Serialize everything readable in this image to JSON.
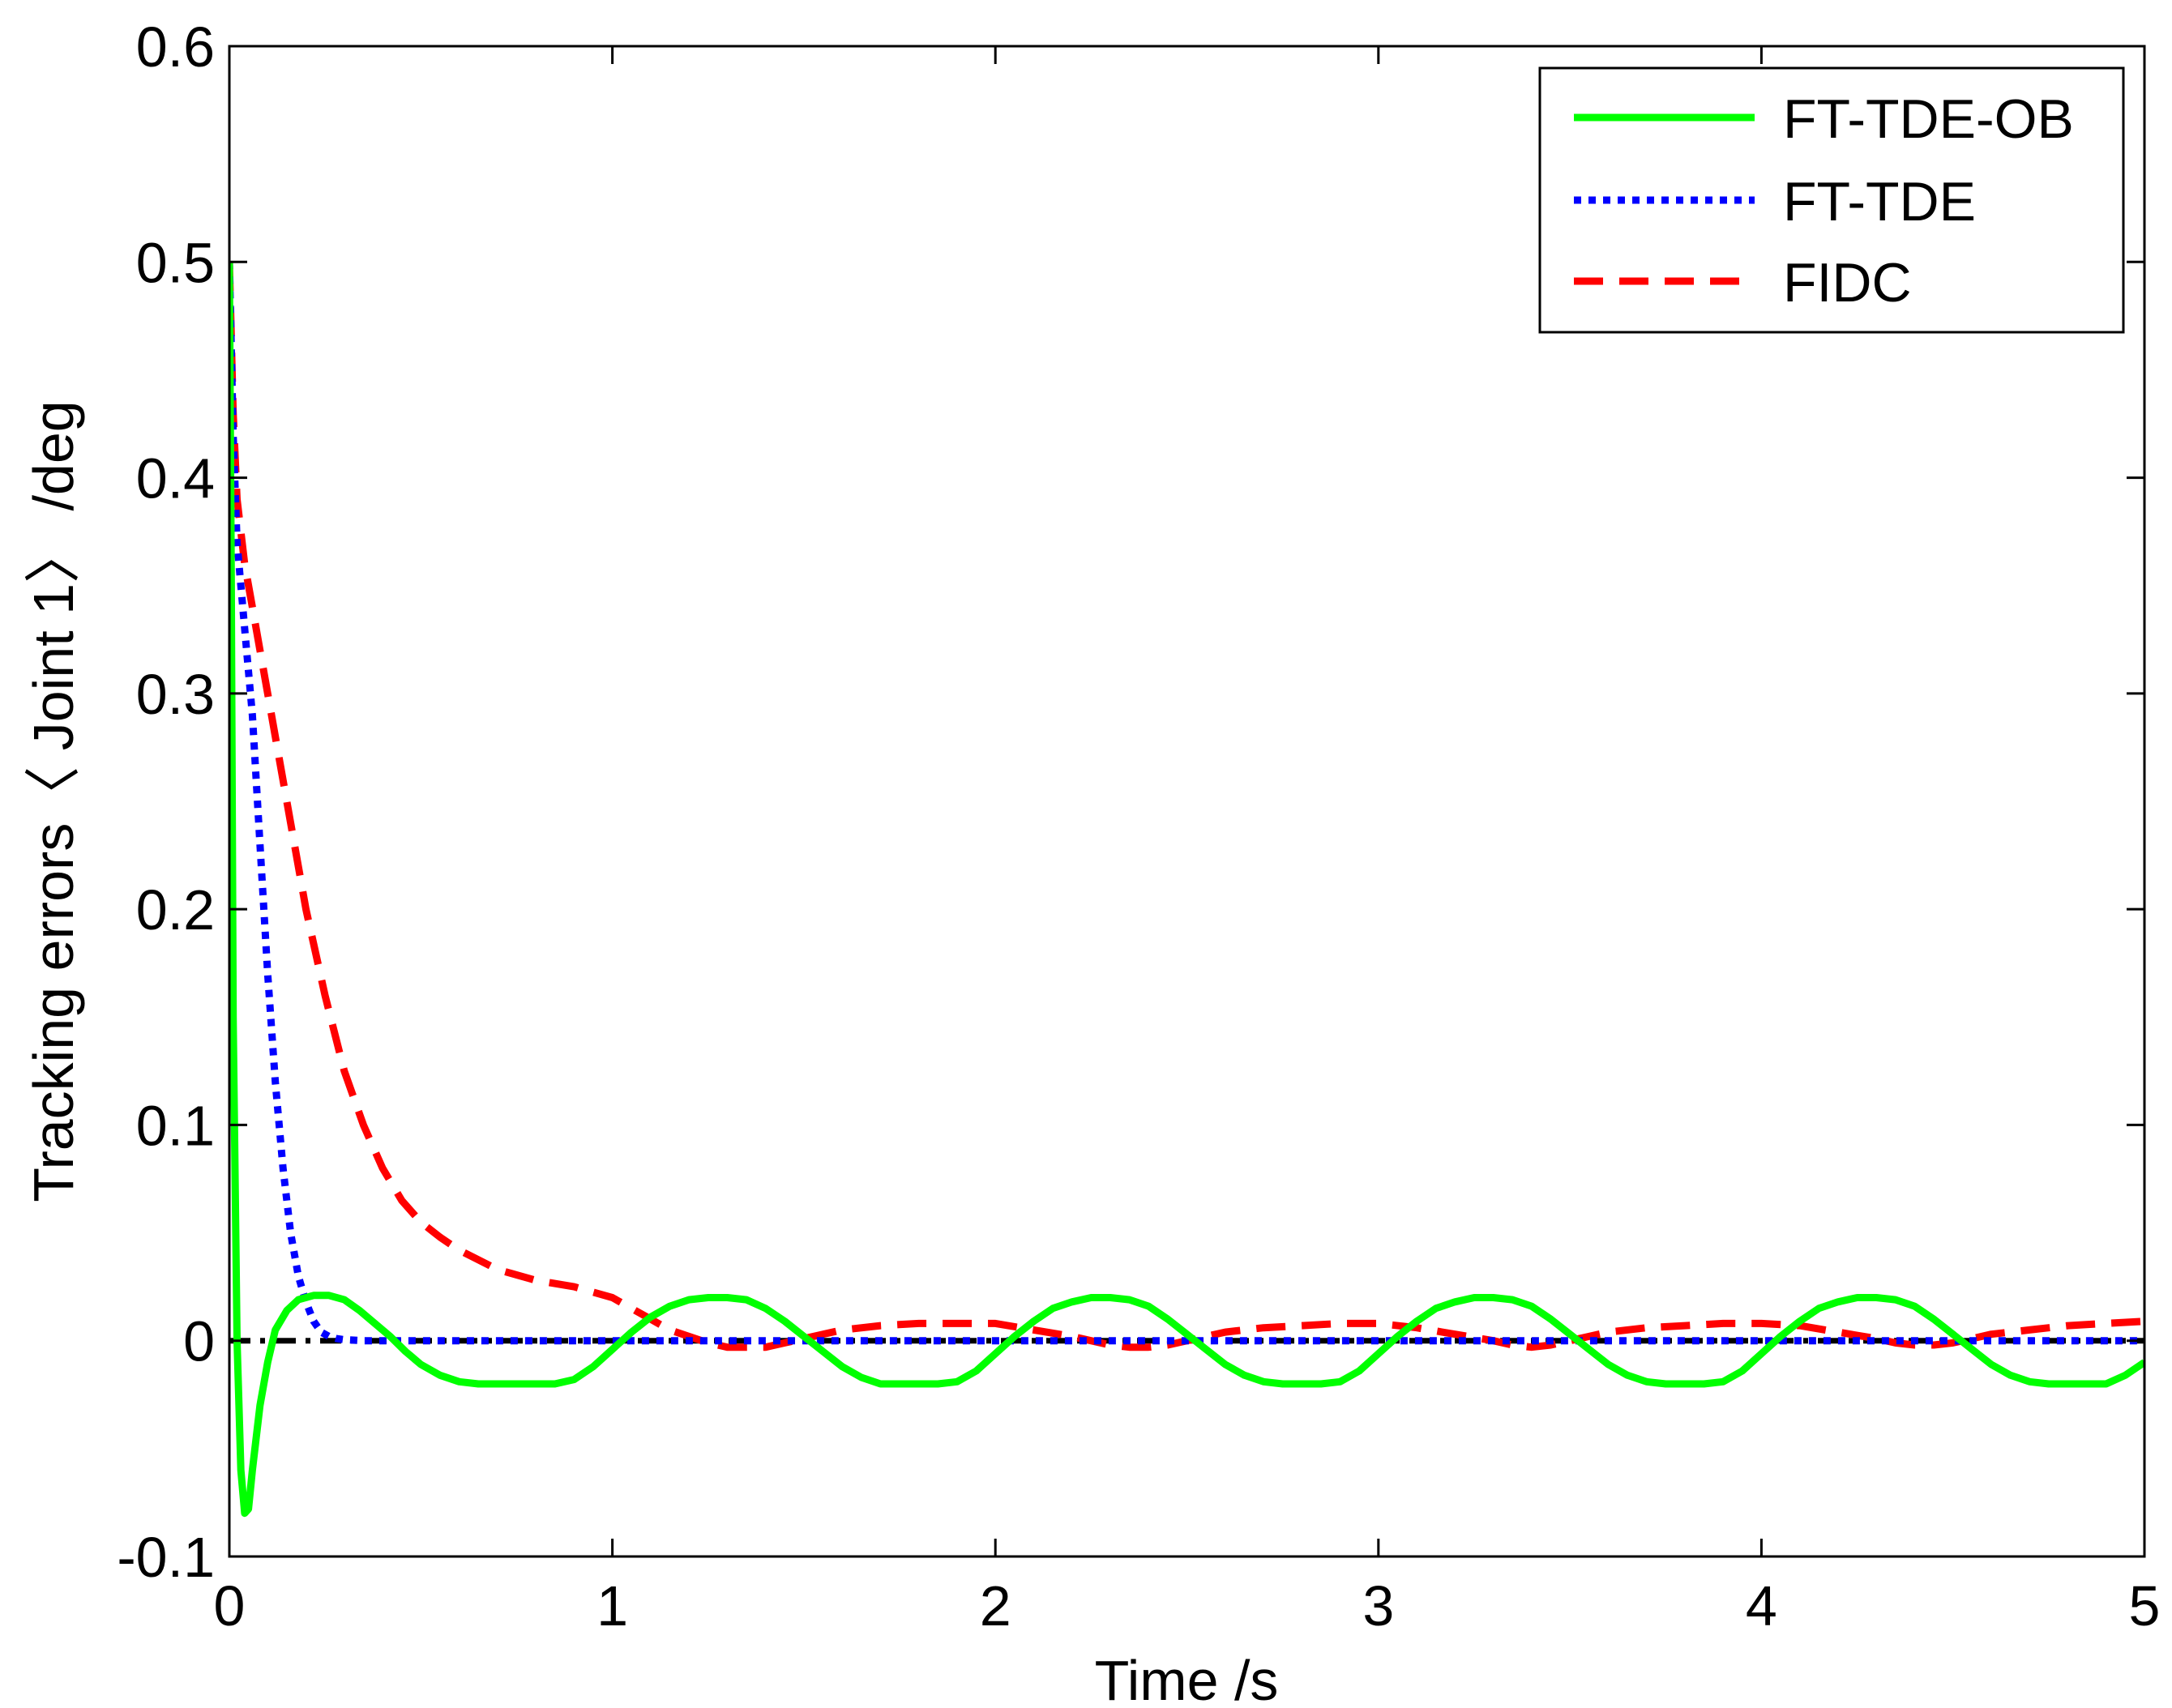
{
  "chart_data": {
    "type": "line",
    "title": "",
    "xlabel": "Time /s",
    "ylabel": "Tracking errors〈 Joint 1〉 /deg",
    "xlim": [
      0,
      5
    ],
    "ylim": [
      -0.1,
      0.6
    ],
    "xticks": [
      0,
      1,
      2,
      3,
      4,
      5
    ],
    "yticks": [
      -0.1,
      0,
      0.1,
      0.2,
      0.3,
      0.4,
      0.5,
      0.6
    ],
    "xtick_labels": [
      "0",
      "1",
      "2",
      "3",
      "4",
      "5"
    ],
    "ytick_labels": [
      "-0.1",
      "0",
      "0.1",
      "0.2",
      "0.3",
      "0.4",
      "0.5",
      "0.6"
    ],
    "grid": false,
    "legend_position": "top-right",
    "series": [
      {
        "name": "FT-TDE-OB",
        "color": "#00ff00",
        "style": "solid",
        "x": [
          0,
          0.005,
          0.01,
          0.02,
          0.03,
          0.04,
          0.05,
          0.06,
          0.08,
          0.1,
          0.12,
          0.15,
          0.18,
          0.22,
          0.26,
          0.3,
          0.34,
          0.38,
          0.42,
          0.46,
          0.5,
          0.55,
          0.6,
          0.65,
          0.7,
          0.75,
          0.8,
          0.85,
          0.9,
          0.95,
          1.0,
          1.05,
          1.1,
          1.15,
          1.2,
          1.25,
          1.3,
          1.35,
          1.4,
          1.45,
          1.5,
          1.55,
          1.6,
          1.65,
          1.7,
          1.75,
          1.8,
          1.85,
          1.9,
          1.95,
          2.0,
          2.05,
          2.1,
          2.15,
          2.2,
          2.25,
          2.3,
          2.35,
          2.4,
          2.45,
          2.5,
          2.55,
          2.6,
          2.65,
          2.7,
          2.75,
          2.8,
          2.85,
          2.9,
          2.95,
          3.0,
          3.05,
          3.1,
          3.15,
          3.2,
          3.25,
          3.3,
          3.35,
          3.4,
          3.45,
          3.5,
          3.55,
          3.6,
          3.65,
          3.7,
          3.75,
          3.8,
          3.85,
          3.9,
          3.95,
          4.0,
          4.05,
          4.1,
          4.15,
          4.2,
          4.25,
          4.3,
          4.35,
          4.4,
          4.45,
          4.5,
          4.55,
          4.6,
          4.65,
          4.7,
          4.75,
          4.8,
          4.85,
          4.9,
          4.95,
          5.0
        ],
        "values": [
          0.5,
          0.35,
          0.15,
          0.0,
          -0.06,
          -0.08,
          -0.078,
          -0.06,
          -0.03,
          -0.01,
          0.005,
          0.014,
          0.019,
          0.021,
          0.021,
          0.019,
          0.014,
          0.008,
          0.002,
          -0.005,
          -0.011,
          -0.016,
          -0.019,
          -0.02,
          -0.02,
          -0.02,
          -0.02,
          -0.02,
          -0.018,
          -0.012,
          -0.004,
          0.004,
          0.011,
          0.016,
          0.019,
          0.02,
          0.02,
          0.019,
          0.015,
          0.009,
          0.002,
          -0.005,
          -0.012,
          -0.017,
          -0.02,
          -0.02,
          -0.02,
          -0.02,
          -0.019,
          -0.014,
          -0.006,
          0.002,
          0.009,
          0.015,
          0.018,
          0.02,
          0.02,
          0.019,
          0.016,
          0.01,
          0.003,
          -0.004,
          -0.011,
          -0.016,
          -0.019,
          -0.02,
          -0.02,
          -0.02,
          -0.019,
          -0.014,
          -0.006,
          0.002,
          0.009,
          0.015,
          0.018,
          0.02,
          0.02,
          0.019,
          0.016,
          0.01,
          0.003,
          -0.004,
          -0.011,
          -0.016,
          -0.019,
          -0.02,
          -0.02,
          -0.02,
          -0.019,
          -0.014,
          -0.006,
          0.002,
          0.009,
          0.015,
          0.018,
          0.02,
          0.02,
          0.019,
          0.016,
          0.01,
          0.003,
          -0.004,
          -0.011,
          -0.016,
          -0.019,
          -0.02,
          -0.02,
          -0.02,
          -0.02,
          -0.016,
          -0.01
        ]
      },
      {
        "name": "FT-TDE",
        "color": "#0000ff",
        "style": "dotted",
        "x": [
          0,
          0.01,
          0.02,
          0.04,
          0.06,
          0.08,
          0.1,
          0.12,
          0.14,
          0.16,
          0.18,
          0.2,
          0.22,
          0.24,
          0.26,
          0.28,
          0.3,
          0.35,
          0.4,
          0.5,
          1.0,
          2.0,
          3.0,
          4.0,
          5.0
        ],
        "values": [
          0.5,
          0.42,
          0.37,
          0.33,
          0.29,
          0.23,
          0.17,
          0.12,
          0.08,
          0.05,
          0.03,
          0.018,
          0.009,
          0.004,
          0.002,
          0.001,
          0.0005,
          0.0,
          0.0,
          0.0,
          0.0,
          0.0,
          0.0,
          0.0,
          0.0
        ]
      },
      {
        "name": "FIDC",
        "color": "#ff0000",
        "style": "dashed",
        "x": [
          0,
          0.01,
          0.02,
          0.04,
          0.06,
          0.08,
          0.1,
          0.13,
          0.16,
          0.2,
          0.25,
          0.3,
          0.35,
          0.4,
          0.45,
          0.5,
          0.55,
          0.6,
          0.7,
          0.8,
          0.9,
          1.0,
          1.05,
          1.1,
          1.15,
          1.2,
          1.25,
          1.3,
          1.35,
          1.4,
          1.45,
          1.5,
          1.55,
          1.6,
          1.7,
          1.8,
          1.9,
          2.0,
          2.1,
          2.2,
          2.3,
          2.35,
          2.4,
          2.45,
          2.5,
          2.55,
          2.6,
          2.7,
          2.8,
          2.9,
          3.0,
          3.1,
          3.2,
          3.3,
          3.35,
          3.4,
          3.45,
          3.5,
          3.55,
          3.6,
          3.7,
          3.8,
          3.9,
          4.0,
          4.1,
          4.2,
          4.3,
          4.35,
          4.4,
          4.45,
          4.5,
          4.55,
          4.6,
          4.7,
          4.8,
          4.9,
          5.0
        ],
        "values": [
          0.5,
          0.43,
          0.39,
          0.36,
          0.34,
          0.32,
          0.3,
          0.27,
          0.24,
          0.2,
          0.16,
          0.125,
          0.1,
          0.08,
          0.065,
          0.055,
          0.048,
          0.042,
          0.033,
          0.028,
          0.025,
          0.02,
          0.015,
          0.01,
          0.005,
          0.002,
          -0.001,
          -0.003,
          -0.003,
          -0.003,
          -0.001,
          0.001,
          0.003,
          0.005,
          0.007,
          0.008,
          0.008,
          0.008,
          0.005,
          0.002,
          -0.002,
          -0.003,
          -0.003,
          -0.002,
          0.0,
          0.002,
          0.004,
          0.006,
          0.007,
          0.008,
          0.008,
          0.006,
          0.003,
          0.0,
          -0.002,
          -0.003,
          -0.002,
          0.0,
          0.002,
          0.004,
          0.006,
          0.007,
          0.008,
          0.008,
          0.007,
          0.004,
          0.001,
          -0.001,
          -0.002,
          -0.002,
          -0.001,
          0.001,
          0.003,
          0.005,
          0.007,
          0.008,
          0.009
        ]
      },
      {
        "name": "",
        "color": "#000000",
        "style": "dashdot",
        "x": [
          0,
          5
        ],
        "values": [
          0,
          0
        ]
      }
    ]
  }
}
